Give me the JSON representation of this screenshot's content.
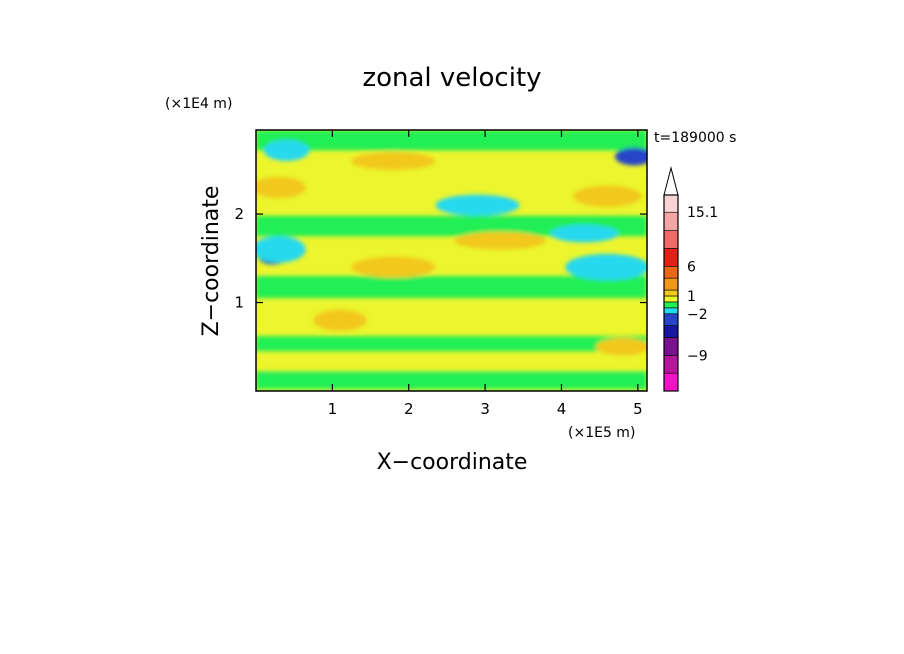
{
  "chart_data": {
    "type": "heatmap",
    "title": "zonal velocity",
    "xlabel": "X−coordinate",
    "ylabel": "Z−coordinate",
    "x_unit": "(×1E5 m)",
    "y_unit": "(×1E4 m)",
    "time_label": "t=189000 s",
    "xlim": [
      0,
      5.12
    ],
    "ylim": [
      0,
      2.95
    ],
    "x_ticks": [
      {
        "value": 1,
        "label": "1"
      },
      {
        "value": 2,
        "label": "2"
      },
      {
        "value": 3,
        "label": "3"
      },
      {
        "value": 4,
        "label": "4"
      },
      {
        "value": 5,
        "label": "5"
      }
    ],
    "y_ticks": [
      {
        "value": 1,
        "label": "1"
      },
      {
        "value": 2,
        "label": "2"
      }
    ],
    "colorbar": {
      "min": -15,
      "max": 18,
      "levels": [
        {
          "lo": -15,
          "hi": -12,
          "color": "#f013c8"
        },
        {
          "lo": -12,
          "hi": -9,
          "color": "#b4169c"
        },
        {
          "lo": -9,
          "hi": -6,
          "color": "#7a1290"
        },
        {
          "lo": -6,
          "hi": -4,
          "color": "#1717a0"
        },
        {
          "lo": -4,
          "hi": -2,
          "color": "#2844c8"
        },
        {
          "lo": -2,
          "hi": -1,
          "color": "#25d9ee"
        },
        {
          "lo": -1,
          "hi": 0,
          "color": "#22ee55"
        },
        {
          "lo": 0,
          "hi": 1,
          "color": "#ecf52e"
        },
        {
          "lo": 1,
          "hi": 2,
          "color": "#f2c81c"
        },
        {
          "lo": 2,
          "hi": 4,
          "color": "#f0981a"
        },
        {
          "lo": 4,
          "hi": 6,
          "color": "#e86818"
        },
        {
          "lo": 6,
          "hi": 9,
          "color": "#e22016"
        },
        {
          "lo": 9,
          "hi": 12,
          "color": "#ef6a6a"
        },
        {
          "lo": 12,
          "hi": 15.1,
          "color": "#f4a5a5"
        },
        {
          "lo": 15.1,
          "hi": 18,
          "color": "#f8d3d3"
        }
      ],
      "labels": [
        {
          "value": 15.1,
          "text": "15.1"
        },
        {
          "value": 6,
          "text": "6"
        },
        {
          "value": 1,
          "text": "1"
        },
        {
          "value": -2,
          "text": "−2"
        },
        {
          "value": -9,
          "text": "−9"
        }
      ]
    },
    "features": [
      {
        "kind": "band",
        "name": "background",
        "x": [
          0,
          5.12
        ],
        "z": [
          0,
          2.95
        ],
        "value": 0.5
      },
      {
        "kind": "band",
        "name": "lower-jet-band",
        "x": [
          0,
          5.12
        ],
        "z": [
          0.02,
          0.22
        ],
        "value": -0.5
      },
      {
        "kind": "band",
        "name": "lower-mid-band",
        "x": [
          0,
          5.12
        ],
        "z": [
          0.45,
          0.62
        ],
        "value": -0.5
      },
      {
        "kind": "band",
        "name": "mid-band",
        "x": [
          0,
          5.12
        ],
        "z": [
          1.05,
          1.3
        ],
        "value": -0.5
      },
      {
        "kind": "band",
        "name": "upper-band",
        "x": [
          0,
          5.12
        ],
        "z": [
          1.75,
          1.98
        ],
        "value": -0.5
      },
      {
        "kind": "band",
        "name": "top-band",
        "x": [
          0,
          5.12
        ],
        "z": [
          2.72,
          2.95
        ],
        "value": -0.5
      },
      {
        "kind": "blob",
        "name": "positive-upper-left",
        "cx": 0.3,
        "cz": 2.3,
        "rx": 0.35,
        "rz": 0.12,
        "value": 1.5
      },
      {
        "kind": "blob",
        "name": "positive-upper-mid",
        "cx": 1.8,
        "cz": 2.6,
        "rx": 0.55,
        "rz": 0.1,
        "value": 1.5
      },
      {
        "kind": "blob",
        "name": "positive-upper-right",
        "cx": 4.6,
        "cz": 2.2,
        "rx": 0.45,
        "rz": 0.12,
        "value": 1.5
      },
      {
        "kind": "blob",
        "name": "positive-mid-left",
        "cx": 1.1,
        "cz": 0.8,
        "rx": 0.35,
        "rz": 0.12,
        "value": 1.5
      },
      {
        "kind": "blob",
        "name": "positive-mid-center",
        "cx": 1.8,
        "cz": 1.4,
        "rx": 0.55,
        "rz": 0.12,
        "value": 1.5
      },
      {
        "kind": "blob",
        "name": "positive-mid-right",
        "cx": 3.2,
        "cz": 1.7,
        "rx": 0.6,
        "rz": 0.1,
        "value": 1.5
      },
      {
        "kind": "blob",
        "name": "positive-low-right",
        "cx": 4.8,
        "cz": 0.5,
        "rx": 0.35,
        "rz": 0.1,
        "value": 1.5
      },
      {
        "kind": "blob",
        "name": "jet-core-left",
        "cx": 0.22,
        "cz": 1.5,
        "rx": 0.18,
        "rz": 0.07,
        "value": -3
      },
      {
        "kind": "blob",
        "name": "jet-core-right",
        "cx": 4.7,
        "cz": 1.35,
        "rx": 0.3,
        "rz": 0.07,
        "value": -3
      },
      {
        "kind": "blob",
        "name": "top-left-negative",
        "cx": 0.4,
        "cz": 2.72,
        "rx": 0.3,
        "rz": 0.12,
        "value": -1.5
      },
      {
        "kind": "blob",
        "name": "top-right-negative",
        "cx": 4.95,
        "cz": 2.65,
        "rx": 0.25,
        "rz": 0.1,
        "value": -3
      },
      {
        "kind": "blob",
        "name": "mid-left-cyan",
        "cx": 0.3,
        "cz": 1.6,
        "rx": 0.35,
        "rz": 0.15,
        "value": -1.5
      },
      {
        "kind": "blob",
        "name": "mid-right-cyan",
        "cx": 4.6,
        "cz": 1.4,
        "rx": 0.55,
        "rz": 0.15,
        "value": -1.5
      },
      {
        "kind": "blob",
        "name": "upper-mid-cyan",
        "cx": 2.9,
        "cz": 2.1,
        "rx": 0.55,
        "rz": 0.12,
        "value": -1.5
      },
      {
        "kind": "blob",
        "name": "upper-right-cyan",
        "cx": 4.3,
        "cz": 1.78,
        "rx": 0.45,
        "rz": 0.1,
        "value": -1.5
      }
    ]
  }
}
